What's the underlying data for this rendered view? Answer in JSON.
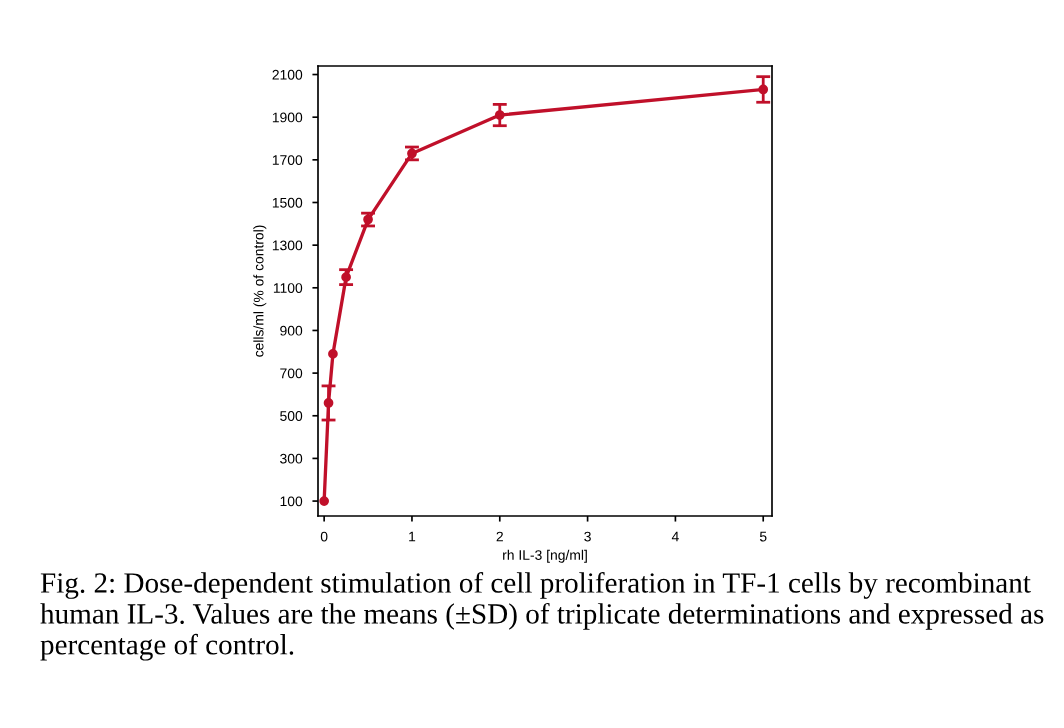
{
  "chart_data": {
    "type": "line",
    "xlabel": "rh IL-3 [ng/ml]",
    "ylabel": "cells/ml (% of control)",
    "x": [
      0,
      0.05,
      0.1,
      0.25,
      0.5,
      1,
      2,
      5
    ],
    "series": [
      {
        "color": "#c0102a",
        "values": [
          100,
          560,
          790,
          1150,
          1420,
          1730,
          1910,
          2030
        ],
        "errors": [
          null,
          80,
          null,
          35,
          30,
          30,
          50,
          60
        ]
      }
    ],
    "marker": "circle",
    "line_style": "solid",
    "grid": false,
    "xlim": [
      -0.07,
      5.1
    ],
    "ylim": [
      30,
      2140
    ],
    "xticks": [
      0,
      1,
      2,
      3,
      4,
      5
    ],
    "yticks": [
      100,
      300,
      500,
      700,
      900,
      1100,
      1300,
      1500,
      1700,
      1900,
      2100
    ],
    "annotations": [
      "Fig. 2: Dose-dependent stimulation of cell proliferation in TF-1 cells by recombinant human IL-3. Values are the means (±SD) of triplicate determinations and expressed as percentage of control."
    ]
  }
}
